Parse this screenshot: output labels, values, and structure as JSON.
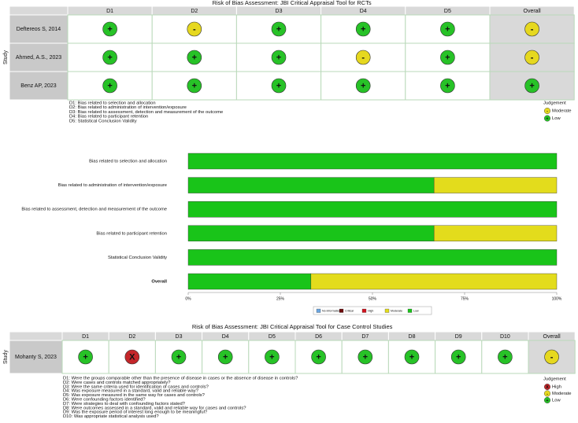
{
  "rct_plot": {
    "title": "Risk of Bias Assessment: JBI Critical Appraisal Tool for RCTs",
    "axis_label": "Study",
    "columns": [
      "D1",
      "D2",
      "D3",
      "D4",
      "D5",
      "Overall"
    ],
    "rows": [
      {
        "study": "Deftereos S, 2014",
        "judgements": [
          "+",
          "-",
          "+",
          "+",
          "+",
          "-"
        ]
      },
      {
        "study": "Ahmed, A.S., 2023",
        "judgements": [
          "+",
          "+",
          "+",
          "-",
          "+",
          "-"
        ]
      },
      {
        "study": "Benz AP, 2023",
        "judgements": [
          "+",
          "+",
          "+",
          "+",
          "+",
          "+"
        ]
      }
    ],
    "notes": [
      "D1: Bias related to selection and allocation",
      "D2: Bias related to administration of intervention/exposure",
      "D3: Bias related to assessment, detection and measurement of the outcome",
      "D4: Bias related to participant retention",
      "D5: Statistical Conclusion Validity"
    ],
    "legend": {
      "title": "Judgement",
      "items": [
        {
          "label": "Moderate",
          "symbol": "-",
          "color": "#e6d81f"
        },
        {
          "label": "Low",
          "symbol": "+",
          "color": "#27c227"
        }
      ]
    }
  },
  "chart_data": {
    "type": "stacked_barh",
    "categories": [
      "Bias related to selection and allocation",
      "Bias related to administration of intervention/exposure",
      "Bias related to assessment, detection and measurement of the outcome",
      "Bias related to participant retention",
      "Statistical Conclusion Validity",
      "Overall"
    ],
    "series": [
      {
        "name": "No information",
        "color": "#6aa6e0",
        "values": [
          0,
          0,
          0,
          0,
          0,
          0
        ]
      },
      {
        "name": "Critical",
        "color": "#6b0a0a",
        "values": [
          0,
          0,
          0,
          0,
          0,
          0
        ]
      },
      {
        "name": "High",
        "color": "#d0141e",
        "values": [
          0,
          0,
          0,
          0,
          0,
          0
        ]
      },
      {
        "name": "Moderate",
        "color": "#e3dc1c",
        "values": [
          0,
          33.3,
          0,
          33.3,
          0,
          66.7
        ]
      },
      {
        "name": "Low",
        "color": "#19c419",
        "values": [
          100,
          66.7,
          100,
          66.7,
          100,
          33.3
        ]
      }
    ],
    "xlim": [
      0,
      100
    ],
    "xticks": [
      {
        "value": 0,
        "label": "0%"
      },
      {
        "value": 25,
        "label": "25%"
      },
      {
        "value": 50,
        "label": "50%"
      },
      {
        "value": 75,
        "label": "75%"
      },
      {
        "value": 100,
        "label": "100%"
      }
    ]
  },
  "case_plot": {
    "title": "Risk of Bias Assessment: JBI Critical Appraisal Tool for Case Control Studies",
    "axis_label": "Study",
    "columns": [
      "D1",
      "D2",
      "D3",
      "D4",
      "D5",
      "D6",
      "D7",
      "D8",
      "D9",
      "D10",
      "Overall"
    ],
    "rows": [
      {
        "study": "Mohanty S, 2023",
        "judgements": [
          "+",
          "X",
          "+",
          "+",
          "+",
          "+",
          "+",
          "+",
          "+",
          "+",
          "-"
        ]
      }
    ],
    "notes": [
      "D1: Were the groups comparable other than the presence of disease in cases or the absence of disease in controls?",
      "D2: Were cases and controls matched appropriately?",
      "D3: Were the same criteria used for identification of cases and controls?",
      "D4: Was exposure measured in a standard, valid and reliable way?",
      "D5: Was exposure measured in the same way for cases and controls?",
      "D6: Were confounding factors identified?",
      "D7: Were strategies to deal with confounding factors stated?",
      "D8: Were outcomes assessed in a standard, valid and reliable way for cases and controls?",
      "D9: Was the exposure period of interest long enough to be meaningful?",
      "D10: Was appropriate statistical analysis used?"
    ],
    "legend": {
      "title": "Judgement",
      "items": [
        {
          "label": "High",
          "symbol": "X",
          "color": "#c4262a"
        },
        {
          "label": "Moderate",
          "symbol": "-",
          "color": "#e6d81f"
        },
        {
          "label": "Low",
          "symbol": "+",
          "color": "#27c227"
        }
      ]
    }
  }
}
